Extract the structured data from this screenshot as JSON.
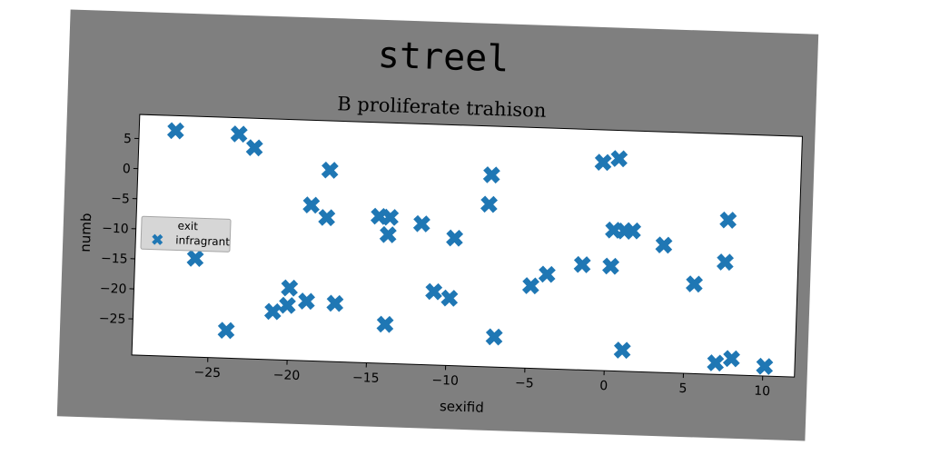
{
  "chart_data": {
    "type": "scatter",
    "suptitle": "streel",
    "title": "B proliferate trahison",
    "xlabel": "sexifid",
    "ylabel": "numb",
    "xlim": [
      -29.8,
      12
    ],
    "ylim": [
      -31,
      9
    ],
    "xticks": [
      -25,
      -20,
      -15,
      -10,
      -5,
      0,
      5,
      10
    ],
    "yticks": [
      5,
      0,
      -5,
      -10,
      -15,
      -20,
      -25
    ],
    "grid": false,
    "legend": {
      "title": "exit",
      "placement": "center-left"
    },
    "marker": "X",
    "color": "#1f77b4",
    "series": [
      {
        "name": "infragrant",
        "points": [
          [
            -27.5,
            6.5
          ],
          [
            -23.5,
            6.3
          ],
          [
            -22.5,
            4.1
          ],
          [
            -17.7,
            0.8
          ],
          [
            -26.8,
            -11.0
          ],
          [
            -18.8,
            -5.1
          ],
          [
            -17.8,
            -7.1
          ],
          [
            -14.5,
            -6.6
          ],
          [
            -13.8,
            -6.7
          ],
          [
            -13.9,
            -9.6
          ],
          [
            -11.8,
            -7.6
          ],
          [
            -9.7,
            -9.8
          ],
          [
            -7.5,
            0.9
          ],
          [
            -7.6,
            -4.0
          ],
          [
            -26.0,
            -14.6
          ],
          [
            -20.0,
            -19.0
          ],
          [
            -20.1,
            -21.9
          ],
          [
            -21.0,
            -23.0
          ],
          [
            -18.9,
            -21.1
          ],
          [
            -17.1,
            -21.3
          ],
          [
            -13.9,
            -24.5
          ],
          [
            -10.9,
            -18.8
          ],
          [
            -9.9,
            -19.8
          ],
          [
            -7.0,
            -26.0
          ],
          [
            -4.8,
            -17.3
          ],
          [
            -3.8,
            -15.3
          ],
          [
            -1.6,
            -13.5
          ],
          [
            -0.5,
            3.6
          ],
          [
            0.5,
            4.3
          ],
          [
            0.3,
            -7.6
          ],
          [
            1.0,
            -7.7
          ],
          [
            1.5,
            -7.6
          ],
          [
            0.2,
            -13.6
          ],
          [
            1.1,
            -27.5
          ],
          [
            3.5,
            -9.8
          ],
          [
            5.5,
            -16.1
          ],
          [
            7.5,
            -5.3
          ],
          [
            7.4,
            -12.3
          ],
          [
            7.0,
            -29.1
          ],
          [
            8.0,
            -28.3
          ],
          [
            10.1,
            -29.4
          ],
          [
            -23.9,
            -26.4
          ]
        ]
      }
    ]
  }
}
